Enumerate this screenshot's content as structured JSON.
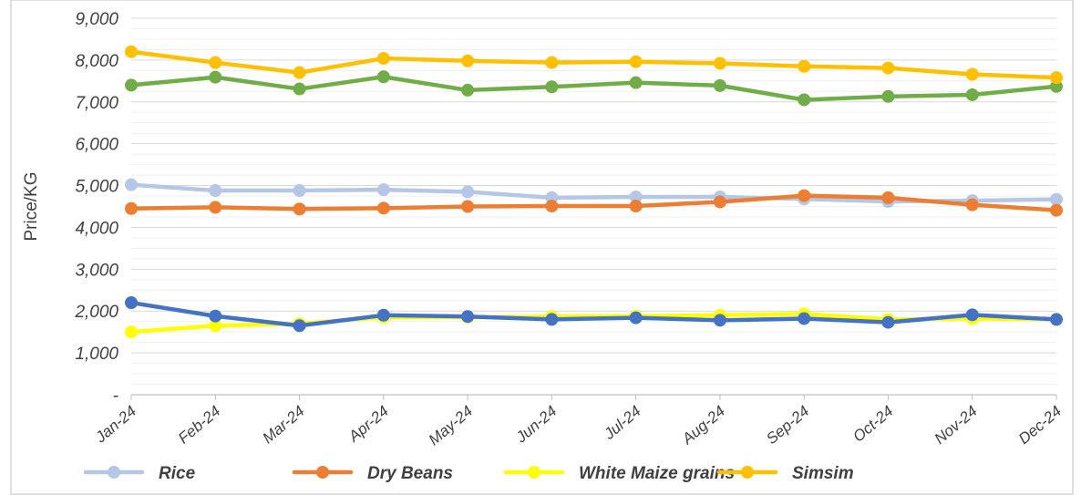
{
  "chart_data": {
    "type": "line",
    "title": "",
    "xlabel": "",
    "ylabel": "Price/KG",
    "ylim": [
      0,
      9000
    ],
    "y_ticks": [
      {
        "value": 0,
        "label": "-"
      },
      {
        "value": 1000,
        "label": "1,000"
      },
      {
        "value": 2000,
        "label": "2,000"
      },
      {
        "value": 3000,
        "label": "3,000"
      },
      {
        "value": 4000,
        "label": "4,000"
      },
      {
        "value": 5000,
        "label": "5,000"
      },
      {
        "value": 6000,
        "label": "6,000"
      },
      {
        "value": 7000,
        "label": "7,000"
      },
      {
        "value": 8000,
        "label": "8,000"
      },
      {
        "value": 9000,
        "label": "9,000"
      }
    ],
    "categories": [
      "Jan-24",
      "Feb-24",
      "Mar-24",
      "Apr-24",
      "May-24",
      "Jun-24",
      "Jul-24",
      "Aug-24",
      "Sep-24",
      "Oct-24",
      "Nov-24",
      "Dec-24"
    ],
    "grid": true,
    "legend_position": "bottom",
    "series": [
      {
        "name": "Rice",
        "color": "#b4c7e7",
        "values": [
          5020,
          4880,
          4880,
          4900,
          4850,
          4710,
          4730,
          4730,
          4680,
          4620,
          4640,
          4670
        ],
        "in_legend": true
      },
      {
        "name": "Dry Beans",
        "color": "#ed7d31",
        "values": [
          4450,
          4480,
          4440,
          4460,
          4500,
          4510,
          4510,
          4610,
          4760,
          4710,
          4540,
          4410
        ],
        "in_legend": true
      },
      {
        "name": "White Maize grains",
        "color": "#ffff00",
        "values": [
          1500,
          1650,
          1700,
          1850,
          1850,
          1870,
          1880,
          1900,
          1930,
          1800,
          1820,
          1800
        ],
        "in_legend": true
      },
      {
        "name": "Simsim",
        "color": "#ffc000",
        "values": [
          8200,
          7940,
          7700,
          8040,
          7980,
          7940,
          7960,
          7920,
          7850,
          7810,
          7660,
          7580
        ],
        "in_legend": true
      },
      {
        "name": "",
        "color": "#70ad47",
        "values": [
          7400,
          7590,
          7310,
          7600,
          7280,
          7360,
          7460,
          7390,
          7050,
          7130,
          7170,
          7370
        ],
        "in_legend": false
      },
      {
        "name": "",
        "color": "#4472c4",
        "values": [
          2200,
          1880,
          1650,
          1900,
          1870,
          1800,
          1840,
          1780,
          1820,
          1730,
          1910,
          1800
        ],
        "in_legend": false
      }
    ]
  }
}
